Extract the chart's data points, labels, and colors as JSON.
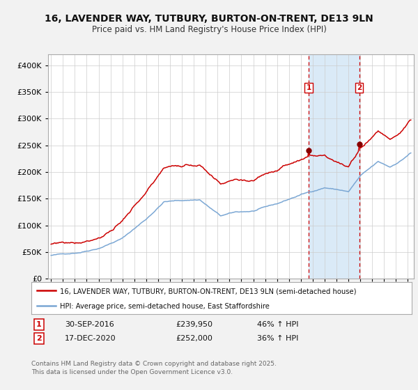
{
  "title1": "16, LAVENDER WAY, TUTBURY, BURTON-ON-TRENT, DE13 9LN",
  "title2": "Price paid vs. HM Land Registry's House Price Index (HPI)",
  "legend_red": "16, LAVENDER WAY, TUTBURY, BURTON-ON-TRENT, DE13 9LN (semi-detached house)",
  "legend_blue": "HPI: Average price, semi-detached house, East Staffordshire",
  "sale1_label": "1",
  "sale1_date": "30-SEP-2016",
  "sale1_price": 239950,
  "sale1_price_str": "£239,950",
  "sale1_pct": "46% ↑ HPI",
  "sale2_label": "2",
  "sale2_date": "17-DEC-2020",
  "sale2_price": 252000,
  "sale2_price_str": "£252,000",
  "sale2_pct": "36% ↑ HPI",
  "footer": "Contains HM Land Registry data © Crown copyright and database right 2025.\nThis data is licensed under the Open Government Licence v3.0.",
  "ylim_min": 0,
  "ylim_max": 420000,
  "ytick_step": 50000,
  "xmin": 1994.75,
  "xmax": 2025.5,
  "fig_bg": "#f2f2f2",
  "plot_bg": "#ffffff",
  "red_color": "#cc0000",
  "blue_color": "#7ba7d4",
  "shade_color": "#daeaf7",
  "vline_color": "#cc0000",
  "grid_color": "#cccccc",
  "sale1_t": 2016.708,
  "sale2_t": 2020.958
}
